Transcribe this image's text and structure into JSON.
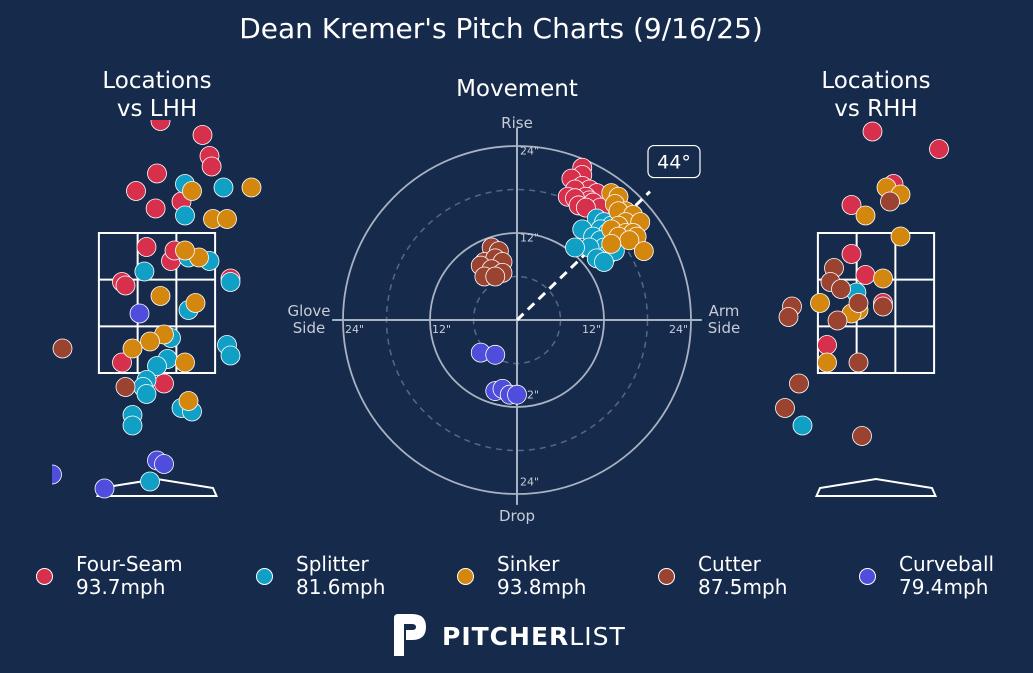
{
  "title": "Dean Kremer's Pitch Charts (9/16/25)",
  "brand": {
    "bold": "PITCHER",
    "light": "LIST"
  },
  "colors": {
    "background": "#162a4b",
    "text": "#ffffff",
    "axis": "#c7ccd6"
  },
  "pitch_types": [
    {
      "key": "FF",
      "name": "Four-Seam",
      "speed": "93.7mph",
      "color": "#d6304c"
    },
    {
      "key": "FS",
      "name": "Splitter",
      "speed": "81.6mph",
      "color": "#11a0c5"
    },
    {
      "key": "SI",
      "name": "Sinker",
      "speed": "93.8mph",
      "color": "#d3870f"
    },
    {
      "key": "FC",
      "name": "Cutter",
      "speed": "87.5mph",
      "color": "#9b4331"
    },
    {
      "key": "CU",
      "name": "Curveball",
      "speed": "79.4mph",
      "color": "#4f4ddb"
    }
  ],
  "chart_data": [
    {
      "type": "scatter",
      "title": "Locations\nvs LHH",
      "x_unit": "feet from plate center (catcher view)",
      "y_unit": "feet above ground",
      "strike_zone": {
        "x": [
          -0.83,
          0.83
        ],
        "y": [
          1.5,
          3.5
        ]
      },
      "points": {
        "FF": [
          [
            0.05,
            5.1
          ],
          [
            0.65,
            4.9
          ],
          [
            0.75,
            4.6
          ],
          [
            0.78,
            4.45
          ],
          [
            0.0,
            4.35
          ],
          [
            -0.3,
            4.1
          ],
          [
            0.35,
            3.95
          ],
          [
            -0.02,
            3.85
          ],
          [
            -0.15,
            3.3
          ],
          [
            0.2,
            3.1
          ],
          [
            0.25,
            3.25
          ],
          [
            1.05,
            2.85
          ],
          [
            -0.5,
            2.8
          ],
          [
            -0.45,
            2.75
          ],
          [
            0.1,
            1.35
          ],
          [
            -0.5,
            1.65
          ]
        ],
        "FS": [
          [
            0.4,
            4.2
          ],
          [
            0.95,
            4.15
          ],
          [
            0.4,
            3.75
          ],
          [
            0.45,
            3.15
          ],
          [
            0.75,
            3.1
          ],
          [
            -0.18,
            2.95
          ],
          [
            1.05,
            2.8
          ],
          [
            0.45,
            2.4
          ],
          [
            0.2,
            2.0
          ],
          [
            1.0,
            1.9
          ],
          [
            1.05,
            1.75
          ],
          [
            0.15,
            1.7
          ],
          [
            0.0,
            1.6
          ],
          [
            -0.15,
            1.4
          ],
          [
            -0.2,
            1.3
          ],
          [
            -0.15,
            1.2
          ],
          [
            0.35,
            1.0
          ],
          [
            0.5,
            0.95
          ],
          [
            -0.35,
            0.9
          ],
          [
            -0.35,
            0.75
          ],
          [
            -0.1,
            -0.05
          ]
        ],
        "SI": [
          [
            0.5,
            4.1
          ],
          [
            1.35,
            4.15
          ],
          [
            0.8,
            3.7
          ],
          [
            1.0,
            3.7
          ],
          [
            0.6,
            3.15
          ],
          [
            0.4,
            3.25
          ],
          [
            0.05,
            2.6
          ],
          [
            0.55,
            2.5
          ],
          [
            0.1,
            2.05
          ],
          [
            -0.1,
            1.95
          ],
          [
            -0.35,
            1.85
          ],
          [
            0.4,
            1.65
          ],
          [
            0.45,
            1.1
          ]
        ],
        "FC": [
          [
            -1.35,
            1.85
          ],
          [
            -0.45,
            1.3
          ]
        ],
        "CU": [
          [
            -0.25,
            2.35
          ],
          [
            0.0,
            0.25
          ],
          [
            0.1,
            0.2
          ],
          [
            -1.5,
            0.05
          ],
          [
            -0.75,
            -0.15
          ],
          [
            -0.75,
            -0.85
          ]
        ]
      }
    },
    {
      "type": "scatter",
      "title": "Movement",
      "x_unit": "inches of horizontal break (glove side negative, arm side positive)",
      "y_unit": "inches of induced vertical break",
      "axis_labels": {
        "top": "Rise",
        "bottom": "Drop",
        "left": "Glove\nSide",
        "right": "Arm\nSide"
      },
      "ring_labels": [
        "12\"",
        "24\""
      ],
      "arm_angle": {
        "label": "44°",
        "degrees": 44
      },
      "points": {
        "FF": [
          [
            9,
            21
          ],
          [
            9,
            20
          ],
          [
            7.5,
            19.5
          ],
          [
            9,
            18.5
          ],
          [
            10,
            18
          ],
          [
            8,
            18
          ],
          [
            11,
            17.5
          ],
          [
            9.5,
            17
          ],
          [
            10,
            16.5
          ],
          [
            7,
            17
          ],
          [
            8,
            16.8
          ],
          [
            10.5,
            16.2
          ],
          [
            8.5,
            15.8
          ],
          [
            11.5,
            15.5
          ],
          [
            9.5,
            15.5
          ]
        ],
        "FS": [
          [
            11,
            14
          ],
          [
            12,
            13.5
          ],
          [
            13,
            13
          ],
          [
            11.5,
            12.5
          ],
          [
            9,
            12.5
          ],
          [
            12.5,
            12
          ],
          [
            10.5,
            11.5
          ],
          [
            11.5,
            11
          ],
          [
            13,
            10.5
          ],
          [
            12,
            10
          ],
          [
            10,
            10
          ],
          [
            8,
            10
          ],
          [
            12.5,
            9
          ],
          [
            13.5,
            9.5
          ],
          [
            11,
            8.5
          ],
          [
            12,
            8
          ]
        ],
        "SI": [
          [
            13,
            17.5
          ],
          [
            14,
            17
          ],
          [
            13.5,
            16
          ],
          [
            15,
            15
          ],
          [
            14,
            15
          ],
          [
            16,
            14.5
          ],
          [
            15,
            13.5
          ],
          [
            17,
            13.5
          ],
          [
            14,
            13
          ],
          [
            13,
            12.5
          ],
          [
            15,
            12
          ],
          [
            16,
            12
          ],
          [
            16.5,
            11.5
          ],
          [
            14,
            11.5
          ],
          [
            15.5,
            11
          ],
          [
            13,
            10.5
          ],
          [
            17.5,
            9.5
          ]
        ],
        "FC": [
          [
            -3.5,
            10
          ],
          [
            -2.5,
            9.5
          ],
          [
            -4.5,
            8
          ],
          [
            -3,
            8.5
          ],
          [
            -2,
            8
          ],
          [
            -5,
            7.5
          ],
          [
            -3.5,
            7
          ],
          [
            -2,
            6.5
          ],
          [
            -4.5,
            6
          ],
          [
            -3,
            6
          ]
        ],
        "CU": [
          [
            -5,
            -4.5
          ],
          [
            -3,
            -4.8
          ],
          [
            -3,
            -9.8
          ],
          [
            -2,
            -9.5
          ],
          [
            -1,
            -10.3
          ],
          [
            0,
            -10.3
          ]
        ]
      }
    },
    {
      "type": "scatter",
      "title": "Locations\nvs RHH",
      "x_unit": "feet from plate center (catcher view)",
      "y_unit": "feet above ground",
      "strike_zone": {
        "x": [
          -0.83,
          0.83
        ],
        "y": [
          1.5,
          3.5
        ]
      },
      "points": {
        "FF": [
          [
            -0.05,
            4.95
          ],
          [
            0.9,
            4.7
          ],
          [
            0.25,
            4.2
          ],
          [
            -0.35,
            3.9
          ],
          [
            -0.35,
            3.2
          ],
          [
            -0.15,
            2.9
          ],
          [
            0.1,
            2.5
          ],
          [
            -0.7,
            1.9
          ]
        ],
        "FS": [
          [
            -0.28,
            2.65
          ],
          [
            -1.05,
            0.75
          ]
        ],
        "SI": [
          [
            0.15,
            4.15
          ],
          [
            0.35,
            4.05
          ],
          [
            -0.15,
            3.75
          ],
          [
            0.35,
            3.45
          ],
          [
            0.1,
            2.85
          ],
          [
            -0.8,
            2.5
          ],
          [
            -0.25,
            2.4
          ],
          [
            -0.35,
            2.35
          ],
          [
            -0.7,
            1.65
          ]
        ],
        "FC": [
          [
            0.2,
            3.95
          ],
          [
            -0.6,
            3.0
          ],
          [
            -0.65,
            2.8
          ],
          [
            -0.5,
            2.7
          ],
          [
            -0.55,
            2.25
          ],
          [
            -1.2,
            2.45
          ],
          [
            -1.25,
            2.3
          ],
          [
            -0.25,
            2.5
          ],
          [
            0.1,
            2.45
          ],
          [
            -0.25,
            1.65
          ],
          [
            -1.1,
            1.35
          ],
          [
            -1.3,
            1.0
          ],
          [
            -0.2,
            0.6
          ]
        ],
        "CU": []
      }
    }
  ]
}
